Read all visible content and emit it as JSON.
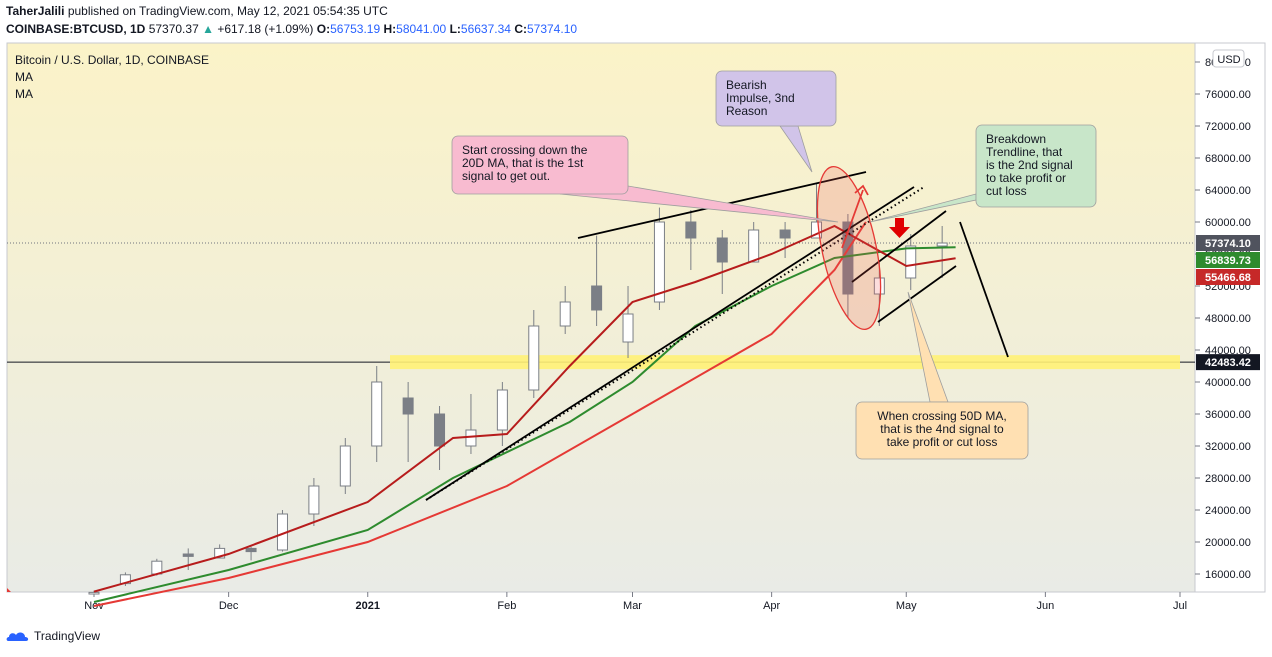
{
  "header": {
    "author": "TaherJalili",
    "published_text": "published on TradingView.com, May 12, 2021 05:54:35 UTC",
    "symbol": "COINBASE:BTCUSD, 1D",
    "last": "57370.37",
    "change": "+617.18 (+1.09%)",
    "o_label": "O:",
    "o_val": "56753.19",
    "h_label": "H:",
    "h_val": "58041.00",
    "l_label": "L:",
    "l_val": "56637.34",
    "c_label": "C:",
    "c_val": "57374.10"
  },
  "legend": {
    "title": "Bitcoin / U.S. Dollar, 1D, COINBASE",
    "ma1": "MA",
    "ma2": "MA"
  },
  "footer": {
    "brand": "TradingView"
  },
  "colors": {
    "bg_top": "#fbf3c8",
    "bg_bottom": "#e9ebe6",
    "candle": "#7b7f86",
    "ma20": "#b71c1c",
    "ma50": "#2e8b2e",
    "ma200": "#e53935",
    "support": "#fff176"
  },
  "chart_data": {
    "type": "candlestick",
    "currency_label": "USD",
    "ylim": [
      12000,
      82000
    ],
    "y_ticks": [
      "80000.00",
      "76000.00",
      "72000.00",
      "68000.00",
      "64000.00",
      "60000.00",
      "56000.00",
      "52000.00",
      "48000.00",
      "44000.00",
      "40000.00",
      "36000.00",
      "32000.00",
      "28000.00",
      "24000.00",
      "20000.00",
      "16000.00"
    ],
    "x_ticks": [
      "Nov",
      "Dec",
      "2021",
      "Feb",
      "Mar",
      "Apr",
      "May",
      "Jun",
      "Jul"
    ],
    "price_labels": [
      {
        "value": 57374.1,
        "text": "57374.10",
        "color": "#50535e"
      },
      {
        "value": 56839.73,
        "text": "56839.73",
        "color": "#2e8b2e"
      },
      {
        "value": 55466.68,
        "text": "55466.68",
        "color": "#c62828"
      },
      {
        "value": 42483.42,
        "text": "42483.42",
        "color": "#131722"
      }
    ],
    "support_level": 42483.42,
    "candles": [
      [
        "2020-11-01",
        13500,
        13900,
        13300,
        13700
      ],
      [
        "2020-11-08",
        14800,
        16200,
        14500,
        15900
      ],
      [
        "2020-11-15",
        16000,
        17900,
        15800,
        17600
      ],
      [
        "2020-11-22",
        18500,
        19200,
        16500,
        18200
      ],
      [
        "2020-11-29",
        18000,
        19700,
        18000,
        19200
      ],
      [
        "2020-12-06",
        19200,
        19400,
        17700,
        18800
      ],
      [
        "2020-12-13",
        19000,
        24000,
        18800,
        23500
      ],
      [
        "2020-12-20",
        23500,
        28000,
        22000,
        27000
      ],
      [
        "2020-12-27",
        27000,
        33000,
        26000,
        32000
      ],
      [
        "2021-01-03",
        32000,
        42000,
        30000,
        40000
      ],
      [
        "2021-01-10",
        38000,
        40000,
        30000,
        36000
      ],
      [
        "2021-01-17",
        36000,
        37000,
        29000,
        32000
      ],
      [
        "2021-01-24",
        32000,
        38500,
        31000,
        34000
      ],
      [
        "2021-01-31",
        34000,
        40000,
        32000,
        39000
      ],
      [
        "2021-02-07",
        39000,
        49000,
        38000,
        47000
      ],
      [
        "2021-02-14",
        47000,
        52000,
        46000,
        50000
      ],
      [
        "2021-02-21",
        52000,
        58300,
        47000,
        49000
      ],
      [
        "2021-02-28",
        45000,
        52000,
        43000,
        48500
      ],
      [
        "2021-03-07",
        50000,
        61800,
        49000,
        60000
      ],
      [
        "2021-03-14",
        60000,
        61500,
        54000,
        58000
      ],
      [
        "2021-03-21",
        58000,
        59000,
        51000,
        55000
      ],
      [
        "2021-03-28",
        55000,
        60000,
        55000,
        59000
      ],
      [
        "2021-04-04",
        59000,
        60000,
        55500,
        58000
      ],
      [
        "2021-04-11",
        58000,
        64800,
        58000,
        60000
      ],
      [
        "2021-04-18",
        60000,
        61000,
        48000,
        51000
      ],
      [
        "2021-04-25",
        51000,
        55000,
        47000,
        53000
      ],
      [
        "2021-05-02",
        53000,
        58500,
        51500,
        57000
      ],
      [
        "2021-05-09",
        57000,
        59500,
        53000,
        57374
      ]
    ],
    "ma_20": [
      [
        "2020-11-01",
        13800
      ],
      [
        "2020-12-01",
        18500
      ],
      [
        "2021-01-01",
        25000
      ],
      [
        "2021-01-20",
        33000
      ],
      [
        "2021-02-01",
        33500
      ],
      [
        "2021-02-15",
        42000
      ],
      [
        "2021-03-01",
        50000
      ],
      [
        "2021-03-15",
        52500
      ],
      [
        "2021-04-01",
        56000
      ],
      [
        "2021-04-15",
        59500
      ],
      [
        "2021-05-01",
        54500
      ],
      [
        "2021-05-12",
        55466.68
      ]
    ],
    "ma_50": [
      [
        "2020-11-01",
        12500
      ],
      [
        "2020-12-01",
        16500
      ],
      [
        "2021-01-01",
        21500
      ],
      [
        "2021-01-20",
        28000
      ],
      [
        "2021-02-15",
        35000
      ],
      [
        "2021-03-01",
        40000
      ],
      [
        "2021-03-15",
        47000
      ],
      [
        "2021-04-01",
        52000
      ],
      [
        "2021-04-15",
        55500
      ],
      [
        "2021-05-01",
        56700
      ],
      [
        "2021-05-12",
        56839.73
      ]
    ],
    "ma_200": [
      [
        "2020-11-01",
        12000
      ],
      [
        "2020-12-01",
        15500
      ],
      [
        "2021-01-01",
        20000
      ],
      [
        "2021-02-01",
        27000
      ],
      [
        "2021-03-01",
        36000
      ],
      [
        "2021-04-01",
        46000
      ],
      [
        "2021-04-15",
        54000
      ],
      [
        "2021-04-22",
        60000
      ]
    ],
    "annotations": [
      {
        "text": [
          "Start crossing down the",
          "20D MA, that is the 1st",
          "signal to get out."
        ],
        "color": "#f8bbd0"
      },
      {
        "text": [
          "Bearish",
          "Impulse, 3nd",
          "Reason"
        ],
        "color": "#d1c4e9"
      },
      {
        "text": [
          "Breakdown",
          "Trendline,  that",
          "is the 2nd signal",
          "to take profit or",
          "cut loss"
        ],
        "color": "#c8e6c9"
      },
      {
        "text": [
          "When crossing 50D MA,",
          "that is the 4nd signal to",
          "take profit or cut loss"
        ],
        "color": "#ffe0b2"
      }
    ]
  }
}
